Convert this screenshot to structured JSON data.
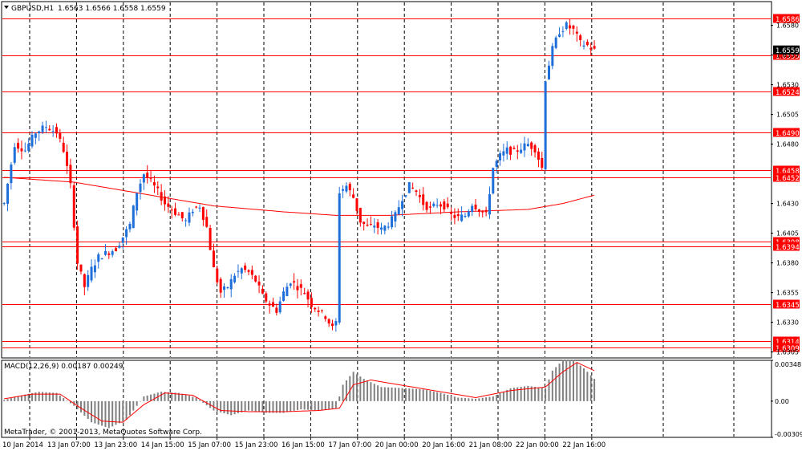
{
  "window": {
    "title": "GBPUSD,H1",
    "ohlc": "1.6563 1.6566 1.6558 1.6559"
  },
  "macd": {
    "label": "MACD(12,26,9) 0.00187 0.00249"
  },
  "copyright": "MetaTrader, © 2001-2013, MetaQuotes Software Corp.",
  "colors": {
    "background": "#ffffff",
    "grid": "#000000",
    "bull": "#1e6fd9",
    "bear": "#ff0000",
    "level": "#ff0000",
    "ma": "#ff0000",
    "histogram": "#808080",
    "signal": "#ff0000"
  },
  "chart_data": [
    {
      "type": "candlestick",
      "symbol": "GBPUSD",
      "timeframe": "H1",
      "ylim": [
        1.63,
        1.66
      ],
      "y_ticks": [
        "1.6580",
        "1.6555",
        "1.6530",
        "1.6505",
        "1.6480",
        "1.6430",
        "1.6405",
        "1.6380",
        "1.6355",
        "1.6330",
        "1.6305"
      ],
      "current_price": "1.6559",
      "x_ticks": [
        "10 Jan 2014",
        "13 Jan 07:00",
        "13 Jan 23:00",
        "14 Jan 15:00",
        "15 Jan 07:00",
        "15 Jan 23:00",
        "16 Jan 15:00",
        "17 Jan 07:00",
        "20 Jan 00:00",
        "20 Jan 16:00",
        "21 Jan 08:00",
        "22 Jan 00:00",
        "22 Jan 16:00"
      ],
      "levels": [
        {
          "label": "1.6586",
          "value": 1.6586
        },
        {
          "label": "1.6555",
          "value": 1.6555
        },
        {
          "label": "1.6524",
          "value": 1.6524
        },
        {
          "label": "1.6490",
          "value": 1.649
        },
        {
          "label": "1.6458",
          "value": 1.6458
        },
        {
          "label": "1.6452",
          "value": 1.6452
        },
        {
          "label": "1.6398",
          "value": 1.6398
        },
        {
          "label": "1.6394",
          "value": 1.6394
        },
        {
          "label": "1.6345",
          "value": 1.6345
        },
        {
          "label": "1.6314",
          "value": 1.6314
        },
        {
          "label": "1.6309",
          "value": 1.6309
        }
      ],
      "price_path": [
        [
          0,
          1.643
        ],
        [
          3,
          1.648
        ],
        [
          6,
          1.6475
        ],
        [
          9,
          1.649
        ],
        [
          12,
          1.6495
        ],
        [
          15,
          1.649
        ],
        [
          17,
          1.6475
        ],
        [
          19,
          1.6445
        ],
        [
          21,
          1.638
        ],
        [
          23,
          1.636
        ],
        [
          25,
          1.6375
        ],
        [
          27,
          1.6385
        ],
        [
          29,
          1.6388
        ],
        [
          32,
          1.6392
        ],
        [
          34,
          1.6402
        ],
        [
          36,
          1.6412
        ],
        [
          38,
          1.644
        ],
        [
          40,
          1.6455
        ],
        [
          42,
          1.6448
        ],
        [
          44,
          1.644
        ],
        [
          46,
          1.643
        ],
        [
          48,
          1.6425
        ],
        [
          50,
          1.642
        ],
        [
          52,
          1.6415
        ],
        [
          54,
          1.6425
        ],
        [
          56,
          1.6428
        ],
        [
          58,
          1.641
        ],
        [
          60,
          1.6375
        ],
        [
          62,
          1.6355
        ],
        [
          64,
          1.636
        ],
        [
          66,
          1.637
        ],
        [
          68,
          1.6375
        ],
        [
          70,
          1.6372
        ],
        [
          72,
          1.6365
        ],
        [
          74,
          1.6352
        ],
        [
          76,
          1.6345
        ],
        [
          78,
          1.634
        ],
        [
          80,
          1.6355
        ],
        [
          82,
          1.6365
        ],
        [
          84,
          1.636
        ],
        [
          86,
          1.6355
        ],
        [
          88,
          1.6345
        ],
        [
          90,
          1.634
        ],
        [
          92,
          1.6335
        ],
        [
          94,
          1.6325
        ],
        [
          95,
          1.633
        ],
        [
          96,
          1.644
        ],
        [
          98,
          1.6445
        ],
        [
          100,
          1.6435
        ],
        [
          102,
          1.6415
        ],
        [
          104,
          1.641
        ],
        [
          106,
          1.6412
        ],
        [
          108,
          1.6408
        ],
        [
          110,
          1.6413
        ],
        [
          112,
          1.642
        ],
        [
          114,
          1.6435
        ],
        [
          116,
          1.6445
        ],
        [
          118,
          1.644
        ],
        [
          120,
          1.643
        ],
        [
          122,
          1.6425
        ],
        [
          124,
          1.643
        ],
        [
          126,
          1.6428
        ],
        [
          128,
          1.642
        ],
        [
          130,
          1.6418
        ],
        [
          132,
          1.642
        ],
        [
          134,
          1.643
        ],
        [
          136,
          1.6425
        ],
        [
          138,
          1.642
        ],
        [
          140,
          1.646
        ],
        [
          142,
          1.647
        ],
        [
          144,
          1.6475
        ],
        [
          146,
          1.6473
        ],
        [
          148,
          1.6477
        ],
        [
          150,
          1.648
        ],
        [
          152,
          1.6476
        ],
        [
          154,
          1.646
        ],
        [
          155,
          1.6535
        ],
        [
          157,
          1.656
        ],
        [
          159,
          1.6575
        ],
        [
          161,
          1.658
        ],
        [
          163,
          1.6576
        ],
        [
          165,
          1.6565
        ],
        [
          167,
          1.6563
        ],
        [
          169,
          1.6559
        ]
      ],
      "moving_average": [
        [
          0,
          1.6452
        ],
        [
          20,
          1.6448
        ],
        [
          40,
          1.6438
        ],
        [
          60,
          1.6428
        ],
        [
          80,
          1.6423
        ],
        [
          95,
          1.642
        ],
        [
          110,
          1.642
        ],
        [
          130,
          1.6423
        ],
        [
          150,
          1.6425
        ],
        [
          160,
          1.643
        ],
        [
          169,
          1.6437
        ]
      ]
    },
    {
      "type": "bar",
      "name": "MACD(12,26,9)",
      "ylim": [
        -0.00309,
        0.00348
      ],
      "y_ticks": [
        "0.00348",
        "0.00",
        "-0.00309"
      ],
      "histogram": [
        [
          0,
          0.0001
        ],
        [
          5,
          0.0005
        ],
        [
          10,
          0.0008
        ],
        [
          15,
          0.0007
        ],
        [
          20,
          -0.0004
        ],
        [
          25,
          -0.0018
        ],
        [
          30,
          -0.0023
        ],
        [
          35,
          -0.0016
        ],
        [
          40,
          0.0004
        ],
        [
          45,
          0.0008
        ],
        [
          50,
          0.0007
        ],
        [
          55,
          0.0003
        ],
        [
          60,
          -0.0008
        ],
        [
          65,
          -0.0012
        ],
        [
          70,
          -0.0008
        ],
        [
          75,
          -0.001
        ],
        [
          80,
          -0.001
        ],
        [
          85,
          -0.0007
        ],
        [
          90,
          -0.0008
        ],
        [
          95,
          -0.0006
        ],
        [
          97,
          0.0014
        ],
        [
          100,
          0.0025
        ],
        [
          103,
          0.0019
        ],
        [
          108,
          0.0012
        ],
        [
          115,
          0.0011
        ],
        [
          120,
          0.001
        ],
        [
          125,
          0.0007
        ],
        [
          130,
          0.0003
        ],
        [
          135,
          0.0002
        ],
        [
          140,
          0.0004
        ],
        [
          145,
          0.0011
        ],
        [
          150,
          0.0013
        ],
        [
          155,
          0.0011
        ],
        [
          157,
          0.0026
        ],
        [
          160,
          0.0035
        ],
        [
          163,
          0.0035
        ],
        [
          166,
          0.0028
        ],
        [
          169,
          0.0019
        ]
      ],
      "signal": [
        [
          0,
          0.0002
        ],
        [
          8,
          0.0006
        ],
        [
          16,
          0.0006
        ],
        [
          22,
          -0.0006
        ],
        [
          28,
          -0.0017
        ],
        [
          34,
          -0.0018
        ],
        [
          40,
          -0.0003
        ],
        [
          46,
          0.0007
        ],
        [
          54,
          0.0005
        ],
        [
          62,
          -0.0008
        ],
        [
          70,
          -0.0009
        ],
        [
          80,
          -0.0009
        ],
        [
          90,
          -0.0008
        ],
        [
          96,
          -0.0006
        ],
        [
          100,
          0.0014
        ],
        [
          105,
          0.0018
        ],
        [
          115,
          0.0013
        ],
        [
          125,
          0.0008
        ],
        [
          135,
          0.0003
        ],
        [
          145,
          0.0009
        ],
        [
          155,
          0.0012
        ],
        [
          160,
          0.0025
        ],
        [
          164,
          0.0033
        ],
        [
          169,
          0.0026
        ]
      ]
    }
  ]
}
